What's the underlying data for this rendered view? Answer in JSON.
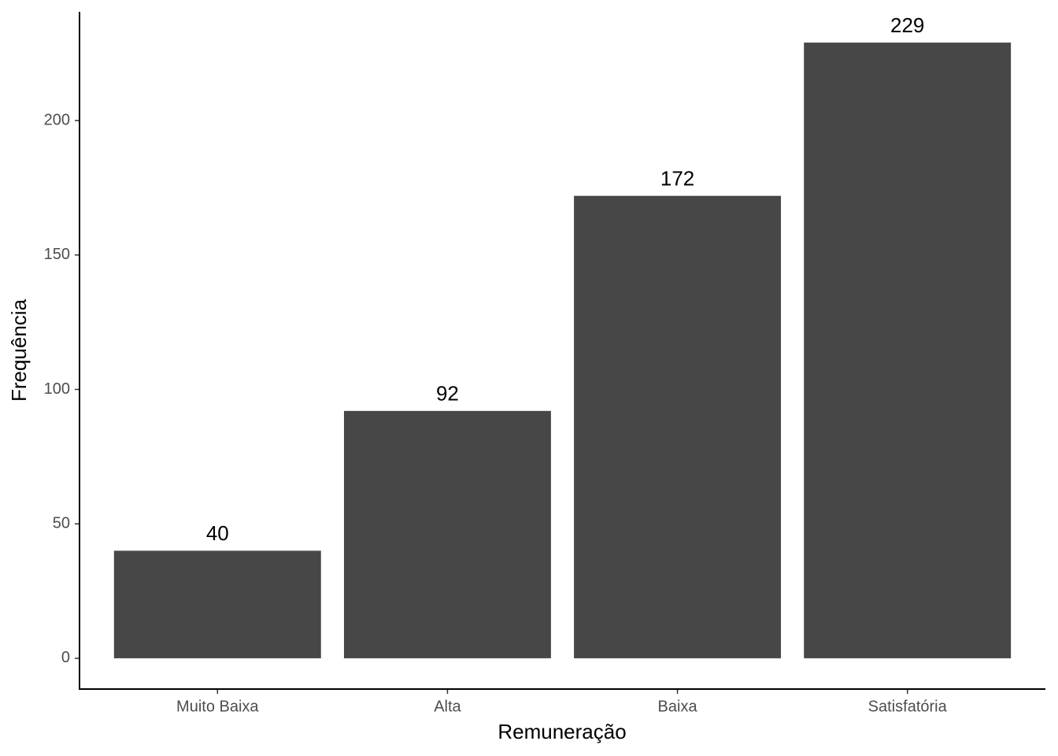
{
  "chart_data": {
    "type": "bar",
    "x_label": "Remuneração",
    "y_label": "Frequência",
    "categories": [
      "Muito Baixa",
      "Alta",
      "Baixa",
      "Satisfatória"
    ],
    "values": [
      40,
      92,
      172,
      229
    ],
    "color": "#474747",
    "ylim": [
      -11.45,
      240.45
    ],
    "yticks": [
      0,
      50,
      100,
      150,
      200
    ],
    "grid": false
  }
}
